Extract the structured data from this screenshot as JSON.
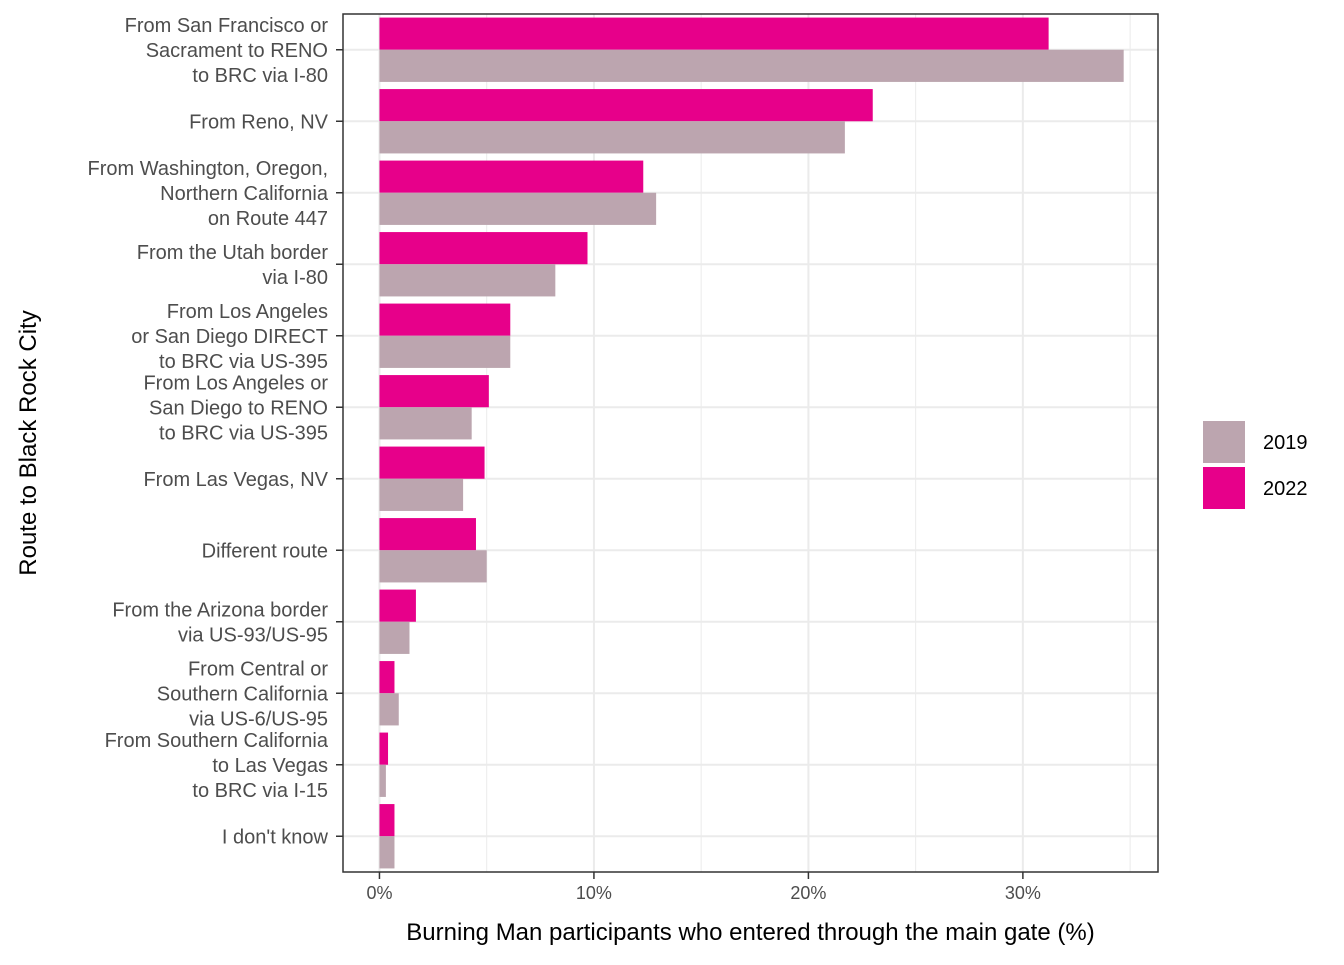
{
  "chart_data": {
    "type": "bar",
    "orientation": "horizontal",
    "xlabel": "Burning Man participants who entered through the main gate (%)",
    "ylabel": "Route to Black Rock City",
    "xlim": [
      -1.7,
      36.3
    ],
    "x_ticks": [
      {
        "value": 0,
        "label": "0%"
      },
      {
        "value": 10,
        "label": "10%"
      },
      {
        "value": 20,
        "label": "20%"
      },
      {
        "value": 30,
        "label": "30%"
      }
    ],
    "grid": true,
    "legend_position": "right",
    "categories": [
      [
        "From San Francisco or",
        "Sacrament to RENO",
        "to BRC via I-80"
      ],
      [
        "From Reno, NV"
      ],
      [
        "From Washington, Oregon,",
        "Northern California",
        "on Route 447"
      ],
      [
        "From the Utah border",
        "via I-80"
      ],
      [
        "From Los Angeles",
        "or San Diego DIRECT",
        "to BRC via US-395"
      ],
      [
        "From Los Angeles or",
        "San Diego to RENO",
        "to BRC via US-395"
      ],
      [
        "From Las Vegas, NV"
      ],
      [
        "Different route"
      ],
      [
        "From the Arizona border",
        "via US-93/US-95"
      ],
      [
        "From Central or",
        "Southern California",
        "via US-6/US-95"
      ],
      [
        "From Southern California",
        "to Las Vegas",
        "to BRC via I-15"
      ],
      [
        "I don't know"
      ]
    ],
    "series": [
      {
        "name": "2022",
        "color": "#e7008a",
        "values": [
          31.2,
          23.0,
          12.3,
          9.7,
          6.1,
          5.1,
          4.9,
          4.5,
          1.7,
          0.7,
          0.4,
          0.7
        ]
      },
      {
        "name": "2019",
        "color": "#bca5af",
        "values": [
          34.7,
          21.7,
          12.9,
          8.2,
          6.1,
          4.3,
          3.9,
          5.0,
          1.4,
          0.9,
          0.3,
          0.7
        ]
      }
    ],
    "legend_entries": [
      {
        "label": "2019",
        "color": "#bca5af"
      },
      {
        "label": "2022",
        "color": "#e7008a"
      }
    ]
  }
}
